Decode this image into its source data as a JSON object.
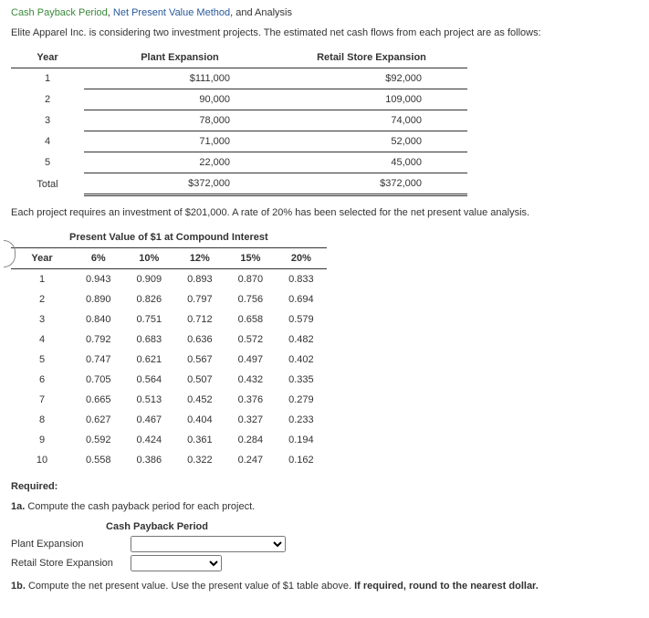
{
  "title": {
    "part1": "Cash Payback Period",
    "sep1": ", ",
    "part2": "Net Present Value Method",
    "sep2": ", and Analysis"
  },
  "intro": "Elite Apparel Inc. is considering two investment projects. The estimated net cash flows from each project are as follows:",
  "cashflow": {
    "headers": [
      "Year",
      "Plant Expansion",
      "Retail Store Expansion"
    ],
    "rows": [
      {
        "year": "1",
        "plant": "$111,000",
        "retail": "$92,000"
      },
      {
        "year": "2",
        "plant": "90,000",
        "retail": "109,000"
      },
      {
        "year": "3",
        "plant": "78,000",
        "retail": "74,000"
      },
      {
        "year": "4",
        "plant": "71,000",
        "retail": "52,000"
      },
      {
        "year": "5",
        "plant": "22,000",
        "retail": "45,000"
      }
    ],
    "total": {
      "year": "Total",
      "plant": "$372,000",
      "retail": "$372,000"
    }
  },
  "mid_text": "Each project requires an investment of $201,000. A rate of 20% has been selected for the net present value analysis.",
  "pv_caption": "Present Value of $1 at Compound Interest",
  "pv": {
    "headers": [
      "Year",
      "6%",
      "10%",
      "12%",
      "15%",
      "20%"
    ],
    "rows": [
      [
        "1",
        "0.943",
        "0.909",
        "0.893",
        "0.870",
        "0.833"
      ],
      [
        "2",
        "0.890",
        "0.826",
        "0.797",
        "0.756",
        "0.694"
      ],
      [
        "3",
        "0.840",
        "0.751",
        "0.712",
        "0.658",
        "0.579"
      ],
      [
        "4",
        "0.792",
        "0.683",
        "0.636",
        "0.572",
        "0.482"
      ],
      [
        "5",
        "0.747",
        "0.621",
        "0.567",
        "0.497",
        "0.402"
      ],
      [
        "6",
        "0.705",
        "0.564",
        "0.507",
        "0.432",
        "0.335"
      ],
      [
        "7",
        "0.665",
        "0.513",
        "0.452",
        "0.376",
        "0.279"
      ],
      [
        "8",
        "0.627",
        "0.467",
        "0.404",
        "0.327",
        "0.233"
      ],
      [
        "9",
        "0.592",
        "0.424",
        "0.361",
        "0.284",
        "0.194"
      ],
      [
        "10",
        "0.558",
        "0.386",
        "0.322",
        "0.247",
        "0.162"
      ]
    ]
  },
  "required_label": "Required:",
  "q1a_prefix": "1a.",
  "q1a_text": " Compute the cash payback period for each project.",
  "payback_header": "Cash Payback Period",
  "payback_rows": {
    "plant": "Plant Expansion",
    "retail": "Retail Store Expansion"
  },
  "q1b_prefix": "1b.",
  "q1b_text": " Compute the net present value. Use the present value of $1 table above. ",
  "q1b_bold": "If required, round to the nearest dollar."
}
